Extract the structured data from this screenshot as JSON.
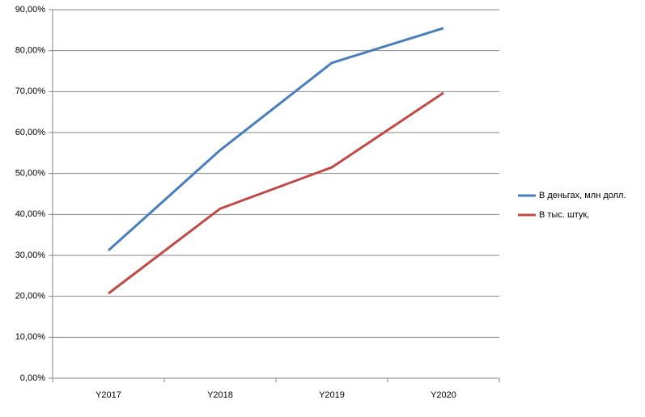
{
  "chart_data": {
    "type": "line",
    "categories": [
      "Y2017",
      "Y2018",
      "Y2019",
      "Y2020"
    ],
    "series": [
      {
        "name": "В деньгах, млн долл.",
        "color": "#4a7ebb",
        "values": [
          31.2,
          55.7,
          77.0,
          85.5
        ]
      },
      {
        "name": "В тыс. штук,",
        "color": "#be4b48",
        "values": [
          20.7,
          41.4,
          51.5,
          69.7
        ]
      }
    ],
    "ylim": [
      0,
      90
    ],
    "yticks": [
      {
        "value": 0,
        "label": "0,00%"
      },
      {
        "value": 10,
        "label": "10,00%"
      },
      {
        "value": 20,
        "label": "20,00%"
      },
      {
        "value": 30,
        "label": "30,00%"
      },
      {
        "value": 40,
        "label": "40,00%"
      },
      {
        "value": 50,
        "label": "50,00%"
      },
      {
        "value": 60,
        "label": "60,00%"
      },
      {
        "value": 70,
        "label": "70,00%"
      },
      {
        "value": 80,
        "label": "80,00%"
      },
      {
        "value": 90,
        "label": "90,00%"
      }
    ],
    "grid": true,
    "legend": "right"
  }
}
